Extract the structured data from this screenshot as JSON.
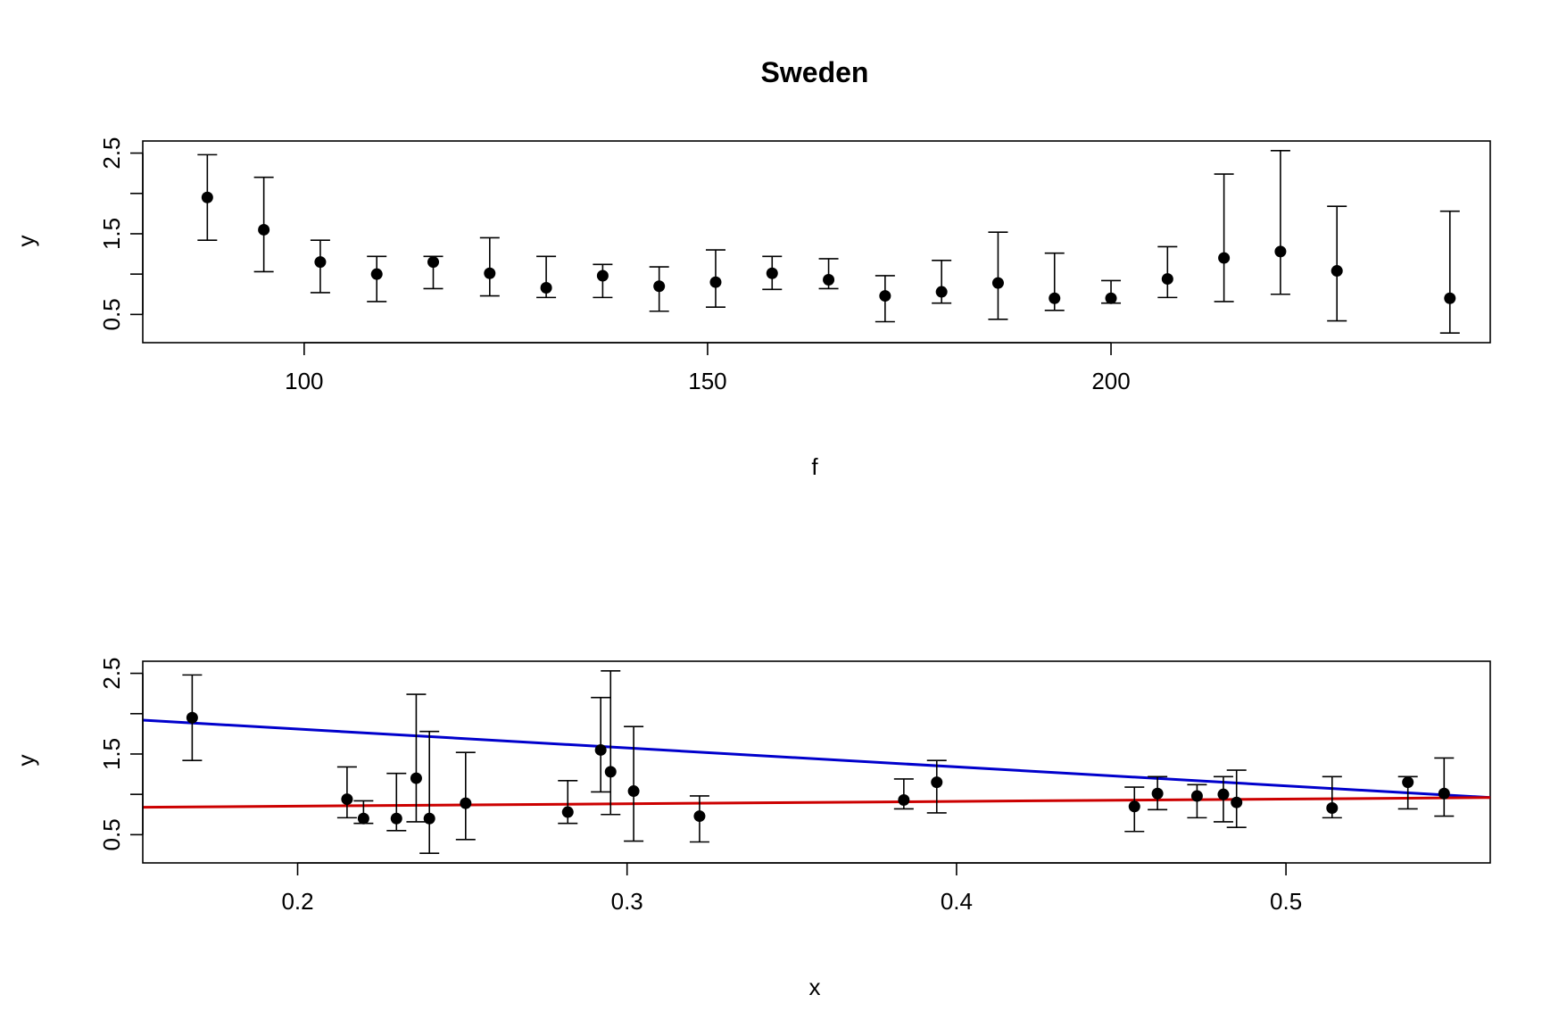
{
  "chart_data": [
    {
      "type": "scatter",
      "title": "Sweden",
      "xlabel": "f",
      "ylabel": "y",
      "xlim": [
        80,
        247
      ],
      "ylim": [
        0.15,
        2.65
      ],
      "x_ticks": [
        100,
        150,
        200
      ],
      "y_ticks": [
        0.5,
        1.5,
        2.5
      ],
      "x_tick_labels": [
        "100",
        "150",
        "200"
      ],
      "y_tick_labels": [
        "0.5",
        "1.5",
        "2.5"
      ],
      "grid": false,
      "legend": "none",
      "series": [
        {
          "points": [
            {
              "x": 88,
              "y": 1.95,
              "lo": 1.42,
              "hi": 2.48
            },
            {
              "x": 95,
              "y": 1.55,
              "lo": 1.03,
              "hi": 2.2
            },
            {
              "x": 102,
              "y": 1.15,
              "lo": 0.77,
              "hi": 1.42
            },
            {
              "x": 109,
              "y": 1.0,
              "lo": 0.66,
              "hi": 1.22
            },
            {
              "x": 116,
              "y": 1.15,
              "lo": 0.82,
              "hi": 1.22
            },
            {
              "x": 123,
              "y": 1.01,
              "lo": 0.73,
              "hi": 1.45
            },
            {
              "x": 130,
              "y": 0.83,
              "lo": 0.71,
              "hi": 1.22
            },
            {
              "x": 137,
              "y": 0.98,
              "lo": 0.71,
              "hi": 1.12
            },
            {
              "x": 144,
              "y": 0.85,
              "lo": 0.54,
              "hi": 1.09
            },
            {
              "x": 151,
              "y": 0.9,
              "lo": 0.59,
              "hi": 1.3
            },
            {
              "x": 158,
              "y": 1.01,
              "lo": 0.81,
              "hi": 1.22
            },
            {
              "x": 165,
              "y": 0.93,
              "lo": 0.82,
              "hi": 1.19
            },
            {
              "x": 172,
              "y": 0.73,
              "lo": 0.41,
              "hi": 0.98
            },
            {
              "x": 179,
              "y": 0.78,
              "lo": 0.64,
              "hi": 1.17
            },
            {
              "x": 186,
              "y": 0.89,
              "lo": 0.44,
              "hi": 1.52
            },
            {
              "x": 193,
              "y": 0.7,
              "lo": 0.55,
              "hi": 1.26
            },
            {
              "x": 200,
              "y": 0.7,
              "lo": 0.64,
              "hi": 0.92
            },
            {
              "x": 207,
              "y": 0.94,
              "lo": 0.71,
              "hi": 1.34
            },
            {
              "x": 214,
              "y": 1.2,
              "lo": 0.66,
              "hi": 2.24
            },
            {
              "x": 221,
              "y": 1.28,
              "lo": 0.75,
              "hi": 2.53
            },
            {
              "x": 228,
              "y": 1.04,
              "lo": 0.42,
              "hi": 1.84
            },
            {
              "x": 242,
              "y": 0.7,
              "lo": 0.27,
              "hi": 1.78
            }
          ]
        }
      ]
    },
    {
      "type": "scatter",
      "title": "",
      "xlabel": "x",
      "ylabel": "y",
      "xlim": [
        0.153,
        0.562
      ],
      "ylim": [
        0.15,
        2.65
      ],
      "x_ticks": [
        0.2,
        0.3,
        0.4,
        0.5
      ],
      "y_ticks": [
        0.5,
        1.5,
        2.5
      ],
      "x_tick_labels": [
        "0.2",
        "0.3",
        "0.4",
        "0.5"
      ],
      "y_tick_labels": [
        "0.5",
        "1.5",
        "2.5"
      ],
      "grid": false,
      "legend": "none",
      "series": [
        {
          "points": [
            {
              "x": 0.168,
              "y": 1.95,
              "lo": 1.42,
              "hi": 2.48
            },
            {
              "x": 0.215,
              "y": 0.94,
              "lo": 0.71,
              "hi": 1.34
            },
            {
              "x": 0.22,
              "y": 0.7,
              "lo": 0.64,
              "hi": 0.92
            },
            {
              "x": 0.23,
              "y": 0.7,
              "lo": 0.55,
              "hi": 1.26
            },
            {
              "x": 0.236,
              "y": 1.2,
              "lo": 0.66,
              "hi": 2.24
            },
            {
              "x": 0.24,
              "y": 0.7,
              "lo": 0.27,
              "hi": 1.78
            },
            {
              "x": 0.251,
              "y": 0.89,
              "lo": 0.44,
              "hi": 1.52
            },
            {
              "x": 0.282,
              "y": 0.78,
              "lo": 0.64,
              "hi": 1.17
            },
            {
              "x": 0.292,
              "y": 1.55,
              "lo": 1.03,
              "hi": 2.2
            },
            {
              "x": 0.295,
              "y": 1.28,
              "lo": 0.75,
              "hi": 2.53
            },
            {
              "x": 0.302,
              "y": 1.04,
              "lo": 0.42,
              "hi": 1.84
            },
            {
              "x": 0.322,
              "y": 0.73,
              "lo": 0.41,
              "hi": 0.98
            },
            {
              "x": 0.384,
              "y": 0.93,
              "lo": 0.82,
              "hi": 1.19
            },
            {
              "x": 0.394,
              "y": 1.15,
              "lo": 0.77,
              "hi": 1.42
            },
            {
              "x": 0.454,
              "y": 0.85,
              "lo": 0.54,
              "hi": 1.09
            },
            {
              "x": 0.461,
              "y": 1.01,
              "lo": 0.81,
              "hi": 1.22
            },
            {
              "x": 0.473,
              "y": 0.98,
              "lo": 0.71,
              "hi": 1.12
            },
            {
              "x": 0.481,
              "y": 1.0,
              "lo": 0.66,
              "hi": 1.22
            },
            {
              "x": 0.485,
              "y": 0.9,
              "lo": 0.59,
              "hi": 1.3
            },
            {
              "x": 0.514,
              "y": 0.83,
              "lo": 0.71,
              "hi": 1.22
            },
            {
              "x": 0.537,
              "y": 1.15,
              "lo": 0.82,
              "hi": 1.22
            },
            {
              "x": 0.548,
              "y": 1.01,
              "lo": 0.73,
              "hi": 1.45
            }
          ]
        }
      ],
      "lines": [
        {
          "color": "#0000CC",
          "x": [
            0.153,
            0.562
          ],
          "y": [
            1.92,
            0.96
          ]
        },
        {
          "color": "#CC0000",
          "x": [
            0.153,
            0.562
          ],
          "y": [
            0.84,
            0.96
          ]
        }
      ]
    }
  ]
}
